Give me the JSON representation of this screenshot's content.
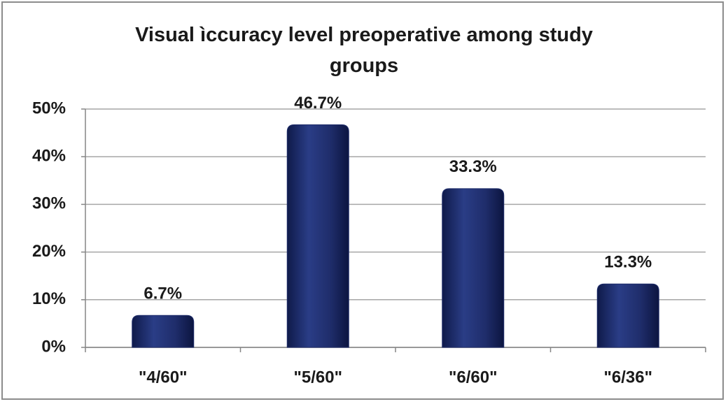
{
  "chart_data": {
    "type": "bar",
    "title": "Visual ìccuracy level preoperative among study groups",
    "categories": [
      "\"4/60\"",
      "\"5/60\"",
      "\"6/60\"",
      "\"6/36\""
    ],
    "values": [
      6.7,
      46.7,
      33.3,
      13.3
    ],
    "value_labels": [
      "6.7%",
      "46.7%",
      "33.3%",
      "13.3%"
    ],
    "color": "#1f2d6b",
    "ylim": [
      0,
      50
    ],
    "yticks": [
      {
        "value": 0,
        "label": "0%"
      },
      {
        "value": 10,
        "label": "10%"
      },
      {
        "value": 20,
        "label": "20%"
      },
      {
        "value": 30,
        "label": "30%"
      },
      {
        "value": 40,
        "label": "40%"
      },
      {
        "value": 50,
        "label": "50%"
      }
    ],
    "grid": true
  }
}
